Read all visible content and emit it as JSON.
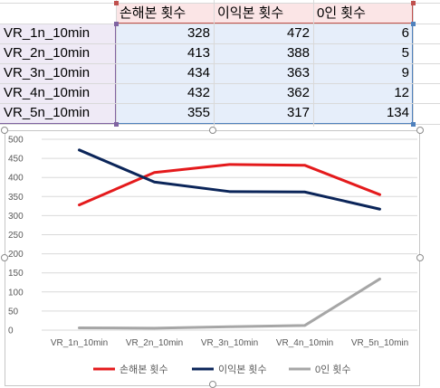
{
  "sheet": {
    "headers": [
      "손해본 횟수",
      "이익본 횟수",
      "0인 횟수"
    ],
    "rows": [
      {
        "label": "VR_1n_10min",
        "values": [
          "328",
          "472",
          "6"
        ]
      },
      {
        "label": "VR_2n_10min",
        "values": [
          "413",
          "388",
          "5"
        ]
      },
      {
        "label": "VR_3n_10min",
        "values": [
          "434",
          "363",
          "9"
        ]
      },
      {
        "label": "VR_4n_10min",
        "values": [
          "432",
          "362",
          "12"
        ]
      },
      {
        "label": "VR_5n_10min",
        "values": [
          "355",
          "317",
          "134"
        ]
      }
    ]
  },
  "chart_data": {
    "type": "line",
    "categories": [
      "VR_1n_10min",
      "VR_2n_10min",
      "VR_3n_10min",
      "VR_4n_10min",
      "VR_5n_10min"
    ],
    "series": [
      {
        "name": "손해본 횟수",
        "color": "#e41a1c",
        "values": [
          328,
          413,
          434,
          432,
          355
        ]
      },
      {
        "name": "이익본 횟수",
        "color": "#0b2559",
        "values": [
          472,
          388,
          363,
          362,
          317
        ]
      },
      {
        "name": "0인 횟수",
        "color": "#a6a6a6",
        "values": [
          6,
          5,
          9,
          12,
          134
        ]
      }
    ],
    "ylim": [
      0,
      500
    ],
    "yticks": [
      0,
      50,
      100,
      150,
      200,
      250,
      300,
      350,
      400,
      450,
      500
    ],
    "grid": true,
    "legend": "bottom"
  }
}
